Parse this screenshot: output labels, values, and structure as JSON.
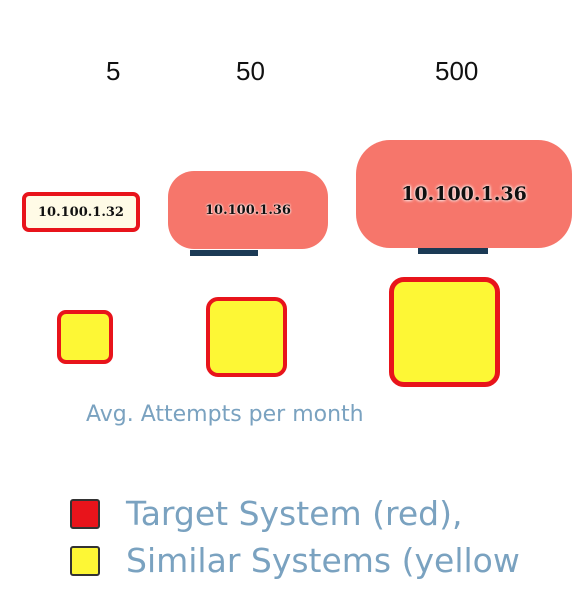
{
  "scale": {
    "labels": [
      "5",
      "50",
      "500"
    ]
  },
  "nodes": {
    "small": "10.100.1.32",
    "medium": "10.100.1.36",
    "large": "10.100.1.36"
  },
  "size_key": {
    "caption": "Avg. Attempts per month"
  },
  "legend": {
    "target_label": "Target System (red),",
    "target_color": "#e8141b",
    "similar_label": "Similar Systems (yellow",
    "similar_color": "#fdf735"
  }
}
